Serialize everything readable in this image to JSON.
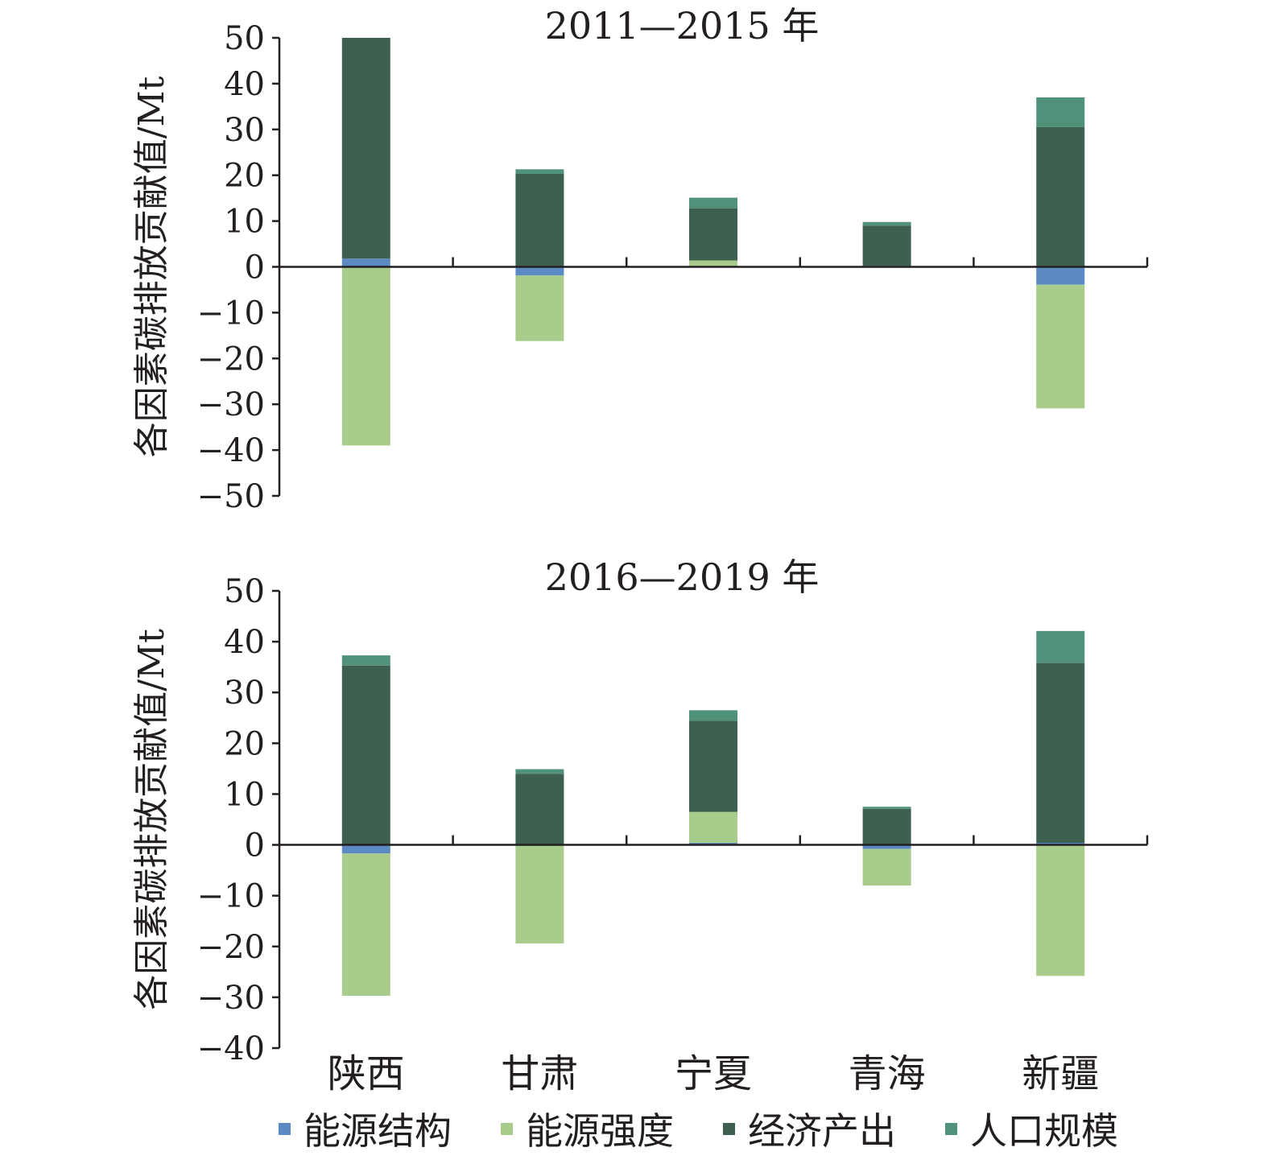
{
  "chart_data": [
    {
      "type": "bar",
      "stacked": true,
      "title": "2011—2015 年",
      "ylabel": "各因素碳排放贡献值/Mt",
      "xlabel": "",
      "ylim": [
        -50,
        50
      ],
      "yticks": [
        "50",
        "40",
        "30",
        "20",
        "10",
        "0",
        "−10",
        "−20",
        "−30",
        "−40",
        "−50"
      ],
      "categories": [
        "陕西",
        "甘肃",
        "宁夏",
        "青海",
        "新疆"
      ],
      "series": [
        {
          "name": "能源结构",
          "color": "#5b8ac4",
          "values": [
            1.8,
            -1.9,
            0.1,
            0.1,
            -3.9
          ]
        },
        {
          "name": "能源强度",
          "color": "#a8cc8c",
          "values": [
            -39,
            -14.3,
            1.3,
            0.1,
            -27
          ]
        },
        {
          "name": "经济产出",
          "color": "#3d6050",
          "values": [
            48.2,
            20.3,
            11.4,
            8.8,
            30.5
          ]
        },
        {
          "name": "人口规模",
          "color": "#4f9279",
          "values": [
            0,
            1,
            2.3,
            0.8,
            6.5
          ]
        }
      ]
    },
    {
      "type": "bar",
      "stacked": true,
      "title": "2016—2019 年",
      "ylabel": "各因素碳排放贡献值/Mt",
      "xlabel": "",
      "ylim": [
        -40,
        50
      ],
      "yticks": [
        "50",
        "40",
        "30",
        "20",
        "10",
        "0",
        "−10",
        "−20",
        "−30",
        "−40"
      ],
      "categories": [
        "陕西",
        "甘肃",
        "宁夏",
        "青海",
        "新疆"
      ],
      "series": [
        {
          "name": "能源结构",
          "color": "#5b8ac4",
          "values": [
            -1.7,
            0,
            0.4,
            -0.8,
            0.4
          ]
        },
        {
          "name": "能源强度",
          "color": "#a8cc8c",
          "values": [
            -28,
            -19.4,
            6.1,
            -7.2,
            -25.8
          ]
        },
        {
          "name": "经济产出",
          "color": "#3d6050",
          "values": [
            35.3,
            14,
            17.9,
            7.1,
            35.4
          ]
        },
        {
          "name": "人口规模",
          "color": "#4f9279",
          "values": [
            2,
            0.9,
            2.1,
            0.4,
            6.3
          ]
        }
      ]
    }
  ],
  "legend": [
    {
      "label": "能源结构",
      "color": "#5b8ac4"
    },
    {
      "label": "能源强度",
      "color": "#a8cc8c"
    },
    {
      "label": "经济产出",
      "color": "#3d6050"
    },
    {
      "label": "人口规模",
      "color": "#4f9279"
    }
  ]
}
